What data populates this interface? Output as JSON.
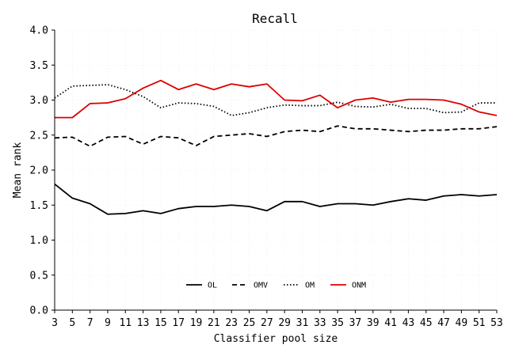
{
  "chart_data": {
    "type": "line",
    "title": "Recall",
    "xlabel": "Classifier pool size",
    "ylabel": "Mean rank",
    "xlim": [
      3,
      53
    ],
    "ylim": [
      0.0,
      4.0
    ],
    "x": [
      3,
      5,
      7,
      9,
      11,
      13,
      15,
      17,
      19,
      21,
      23,
      25,
      27,
      29,
      31,
      33,
      35,
      37,
      39,
      41,
      43,
      45,
      47,
      49,
      51,
      53
    ],
    "xticks": [
      "3",
      "5",
      "7",
      "9",
      "11",
      "13",
      "15",
      "17",
      "19",
      "21",
      "23",
      "25",
      "27",
      "29",
      "31",
      "33",
      "35",
      "37",
      "39",
      "41",
      "43",
      "45",
      "47",
      "49",
      "51",
      "53"
    ],
    "yticks": [
      "0.0",
      "0.5",
      "1.0",
      "1.5",
      "2.0",
      "2.5",
      "3.0",
      "3.5",
      "4.0"
    ],
    "grid": true,
    "legend": "bottom-center",
    "series": [
      {
        "name": "OL",
        "color": "#000000",
        "style": "solid",
        "values": [
          1.8,
          1.6,
          1.52,
          1.37,
          1.38,
          1.42,
          1.38,
          1.45,
          1.48,
          1.48,
          1.5,
          1.48,
          1.42,
          1.55,
          1.55,
          1.48,
          1.52,
          1.52,
          1.5,
          1.55,
          1.59,
          1.57,
          1.63,
          1.65,
          1.63,
          1.65
        ]
      },
      {
        "name": "OMV",
        "color": "#000000",
        "style": "dashed",
        "values": [
          2.46,
          2.47,
          2.34,
          2.47,
          2.48,
          2.37,
          2.48,
          2.46,
          2.35,
          2.48,
          2.5,
          2.52,
          2.48,
          2.55,
          2.57,
          2.55,
          2.63,
          2.59,
          2.59,
          2.57,
          2.55,
          2.57,
          2.57,
          2.59,
          2.59,
          2.62
        ]
      },
      {
        "name": "OM",
        "color": "#000000",
        "style": "dotted",
        "values": [
          3.03,
          3.2,
          3.21,
          3.22,
          3.15,
          3.05,
          2.89,
          2.96,
          2.95,
          2.91,
          2.78,
          2.82,
          2.89,
          2.93,
          2.92,
          2.92,
          2.97,
          2.91,
          2.9,
          2.94,
          2.88,
          2.88,
          2.82,
          2.83,
          2.96,
          2.96
        ]
      },
      {
        "name": "ONM",
        "color": "#dd0000",
        "style": "solid",
        "values": [
          2.75,
          2.75,
          2.95,
          2.96,
          3.02,
          3.17,
          3.28,
          3.15,
          3.23,
          3.15,
          3.23,
          3.19,
          3.23,
          3.0,
          2.99,
          3.07,
          2.89,
          3.0,
          3.03,
          2.97,
          3.01,
          3.01,
          3.0,
          2.94,
          2.83,
          2.78
        ]
      }
    ]
  }
}
